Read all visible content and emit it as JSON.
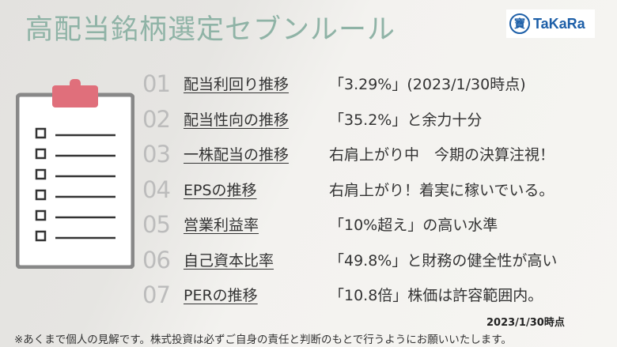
{
  "title": "高配当銘柄選定セブンルール",
  "logo": {
    "text": "TaKaRa",
    "mark": "寶"
  },
  "rules": [
    {
      "num": "01",
      "label": "配当利回り推移",
      "desc": "「3.29%」(2023/1/30時点)"
    },
    {
      "num": "02",
      "label": "配当性向の推移",
      "desc": "「35.2%」と余力十分"
    },
    {
      "num": "03",
      "label": "一株配当の推移",
      "desc": "右肩上がり中　今期の決算注視！"
    },
    {
      "num": "04",
      "label": "EPSの推移",
      "desc": "右肩上がり！着実に稼いでいる。"
    },
    {
      "num": "05",
      "label": "営業利益率",
      "desc": "「10%超え」の高い水準"
    },
    {
      "num": "06",
      "label": "自己資本比率",
      "desc": "「49.8%」と財務の健全性が高い"
    },
    {
      "num": "07",
      "label": "PERの推移",
      "desc": "「10.8倍」株価は許容範囲内。"
    }
  ],
  "date": "2023/1/30時点",
  "note": "※あくまで個人の見解です。株式投資は必ずご自身の責任と判断のもとで行うようにお願いいたします。",
  "colors": {
    "title": "#8fb3a6",
    "clip": "#e06f7b",
    "board": "#888888"
  },
  "icons": {
    "clipboard": "clipboard-checklist-icon"
  }
}
